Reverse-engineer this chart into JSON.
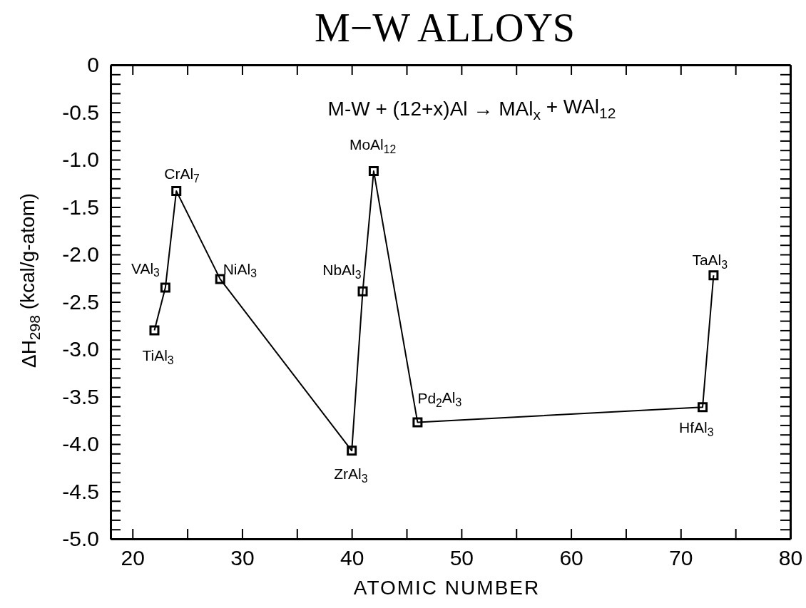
{
  "chart_data": {
    "type": "line",
    "title": "M−W ALLOYS",
    "xlabel": "ATOMIC NUMBER",
    "ylabel": "ΔH$_{298}$ (kcal/g-atom)",
    "x": [
      22,
      23,
      24,
      28,
      40,
      41,
      42,
      46,
      72,
      73
    ],
    "series": [
      {
        "color": "#000000",
        "values": [
          -2.8,
          -2.35,
          -1.33,
          -2.26,
          -4.07,
          -2.39,
          -1.12,
          -3.77,
          -3.61,
          -2.22
        ]
      }
    ],
    "marker": "square",
    "line_style": "solid",
    "xlim": [
      18,
      80
    ],
    "ylim": [
      -5,
      0
    ],
    "xticks": [
      20,
      {
        "value": 25,
        "label": null
      },
      30,
      {
        "value": 35,
        "label": null
      },
      40,
      {
        "value": 45,
        "label": null
      },
      50,
      {
        "value": 55,
        "label": null
      },
      60,
      {
        "value": 65,
        "label": null
      },
      70,
      {
        "value": 75,
        "label": null
      },
      80
    ],
    "yticks": [
      {
        "value": 0,
        "label": "0"
      },
      {
        "value": -0.1,
        "label": null
      },
      {
        "value": -0.2,
        "label": null
      },
      {
        "value": -0.3,
        "label": null
      },
      {
        "value": -0.4,
        "label": null
      },
      {
        "value": -0.5,
        "label": "-0.5"
      },
      {
        "value": -0.6,
        "label": null
      },
      {
        "value": -0.7,
        "label": null
      },
      {
        "value": -0.8,
        "label": null
      },
      {
        "value": -0.9,
        "label": null
      },
      {
        "value": -1,
        "label": "-1.0"
      },
      {
        "value": -1.1,
        "label": null
      },
      {
        "value": -1.2,
        "label": null
      },
      {
        "value": -1.3,
        "label": null
      },
      {
        "value": -1.4,
        "label": null
      },
      {
        "value": -1.5,
        "label": "-1.5"
      },
      {
        "value": -1.6,
        "label": null
      },
      {
        "value": -1.7,
        "label": null
      },
      {
        "value": -1.8,
        "label": null
      },
      {
        "value": -1.9,
        "label": null
      },
      {
        "value": -2,
        "label": "-2.0"
      },
      {
        "value": -2.1,
        "label": null
      },
      {
        "value": -2.2,
        "label": null
      },
      {
        "value": -2.3,
        "label": null
      },
      {
        "value": -2.4,
        "label": null
      },
      {
        "value": -2.5,
        "label": "-2.5"
      },
      {
        "value": -2.6,
        "label": null
      },
      {
        "value": -2.7,
        "label": null
      },
      {
        "value": -2.8,
        "label": null
      },
      {
        "value": -2.9,
        "label": null
      },
      {
        "value": -3,
        "label": "-3.0"
      },
      {
        "value": -3.1,
        "label": null
      },
      {
        "value": -3.2,
        "label": null
      },
      {
        "value": -3.3,
        "label": null
      },
      {
        "value": -3.4,
        "label": null
      },
      {
        "value": -3.5,
        "label": "-3.5"
      },
      {
        "value": -3.6,
        "label": null
      },
      {
        "value": -3.7,
        "label": null
      },
      {
        "value": -3.8,
        "label": null
      },
      {
        "value": -3.9,
        "label": null
      },
      {
        "value": -4,
        "label": "-4.0"
      },
      {
        "value": -4.1,
        "label": null
      },
      {
        "value": -4.2,
        "label": null
      },
      {
        "value": -4.3,
        "label": null
      },
      {
        "value": -4.4,
        "label": null
      },
      {
        "value": -4.5,
        "label": "-4.5"
      },
      {
        "value": -4.6,
        "label": null
      },
      {
        "value": -4.7,
        "label": null
      },
      {
        "value": -4.8,
        "label": null
      },
      {
        "value": -4.9,
        "label": null
      },
      {
        "value": -5,
        "label": "-5.0"
      }
    ],
    "annotations": [
      "M-W + (12+x)Al → MAl$_{x}$ + WAl$_{12}$",
      {
        "text": "TiAl$_{3}$",
        "x": 22,
        "y": -2.8
      },
      {
        "text": "VAl$_{3}$",
        "x": 23,
        "y": -2.35
      },
      {
        "text": "CrAl$_{7}$",
        "x": 24,
        "y": -1.33
      },
      {
        "text": "NiAl$_{3}$",
        "x": 28,
        "y": -2.26
      },
      {
        "text": "ZrAl$_{3}$",
        "x": 40,
        "y": -4.07
      },
      {
        "text": "NbAl$_{3}$",
        "x": 41,
        "y": -2.39
      },
      {
        "text": "MoAl$_{12}$",
        "x": 42,
        "y": -1.12
      },
      {
        "text": "Pd$_{2}$Al$_{3}$",
        "x": 46,
        "y": -3.77
      },
      {
        "text": "HfAl$_{3}$",
        "x": 72,
        "y": -3.61
      },
      {
        "text": "TaAl$_{3}$",
        "x": 73,
        "y": -2.22
      }
    ]
  }
}
